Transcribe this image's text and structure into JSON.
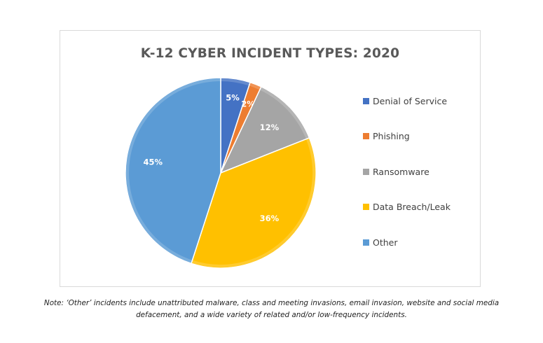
{
  "chart_data": {
    "type": "pie",
    "title": "K-12 CYBER INCIDENT TYPES: 2020",
    "categories": [
      "Denial of Service",
      "Phishing",
      "Ransomware",
      "Data Breach/Leak",
      "Other"
    ],
    "values": [
      5,
      2,
      12,
      36,
      45
    ],
    "value_labels": [
      "5%",
      "2%",
      "12%",
      "36%",
      "45%"
    ],
    "colors": [
      "#4472c4",
      "#ed7d31",
      "#a5a5a5",
      "#ffc000",
      "#5b9bd5"
    ],
    "legend_position": "right"
  },
  "note": "Note: ‘Other’ incidents include unattributed malware, class and meeting invasions, email invasion, website and social media defacement, and a wide variety of related and/or low-frequency incidents."
}
